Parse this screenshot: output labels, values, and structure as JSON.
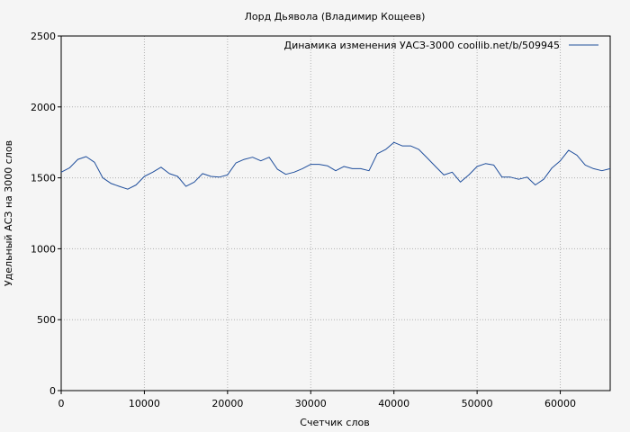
{
  "chart_data": {
    "type": "line",
    "title": "Лорд Дьявола (Владимир Кощеев)",
    "xlabel": "Счетчик слов",
    "ylabel": "Удельный АСЗ на 3000 слов",
    "xlim": [
      0,
      66000
    ],
    "ylim": [
      0,
      2500
    ],
    "xticks": [
      0,
      10000,
      20000,
      30000,
      40000,
      50000,
      60000
    ],
    "yticks": [
      0,
      500,
      1000,
      1500,
      2000,
      2500
    ],
    "grid": true,
    "legend_position": "top-right",
    "series": [
      {
        "name": "Динамика изменения УАСЗ-3000  coollib.net/b/509945",
        "color": "#1f4e9c",
        "x": [
          0,
          1000,
          2000,
          3000,
          4000,
          5000,
          6000,
          7000,
          8000,
          9000,
          10000,
          11000,
          12000,
          13000,
          14000,
          15000,
          16000,
          17000,
          18000,
          19000,
          20000,
          21000,
          22000,
          23000,
          24000,
          25000,
          26000,
          27000,
          28000,
          29000,
          30000,
          31000,
          32000,
          33000,
          34000,
          35000,
          36000,
          37000,
          38000,
          39000,
          40000,
          41000,
          42000,
          43000,
          44000,
          45000,
          46000,
          47000,
          48000,
          49000,
          50000,
          51000,
          52000,
          53000,
          54000,
          55000,
          56000,
          57000,
          58000,
          59000,
          60000,
          61000,
          62000,
          63000,
          64000,
          65000,
          66000
        ],
        "y": [
          1540,
          1570,
          1630,
          1650,
          1610,
          1500,
          1460,
          1440,
          1420,
          1450,
          1510,
          1540,
          1575,
          1530,
          1510,
          1440,
          1470,
          1530,
          1510,
          1505,
          1520,
          1605,
          1630,
          1645,
          1620,
          1645,
          1560,
          1525,
          1540,
          1565,
          1595,
          1595,
          1585,
          1550,
          1580,
          1565,
          1565,
          1550,
          1670,
          1700,
          1750,
          1725,
          1725,
          1700,
          1640,
          1580,
          1520,
          1540,
          1470,
          1520,
          1580,
          1600,
          1590,
          1505,
          1505,
          1490,
          1505,
          1450,
          1490,
          1570,
          1620,
          1695,
          1660,
          1590,
          1565,
          1550,
          1565
        ]
      }
    ]
  }
}
